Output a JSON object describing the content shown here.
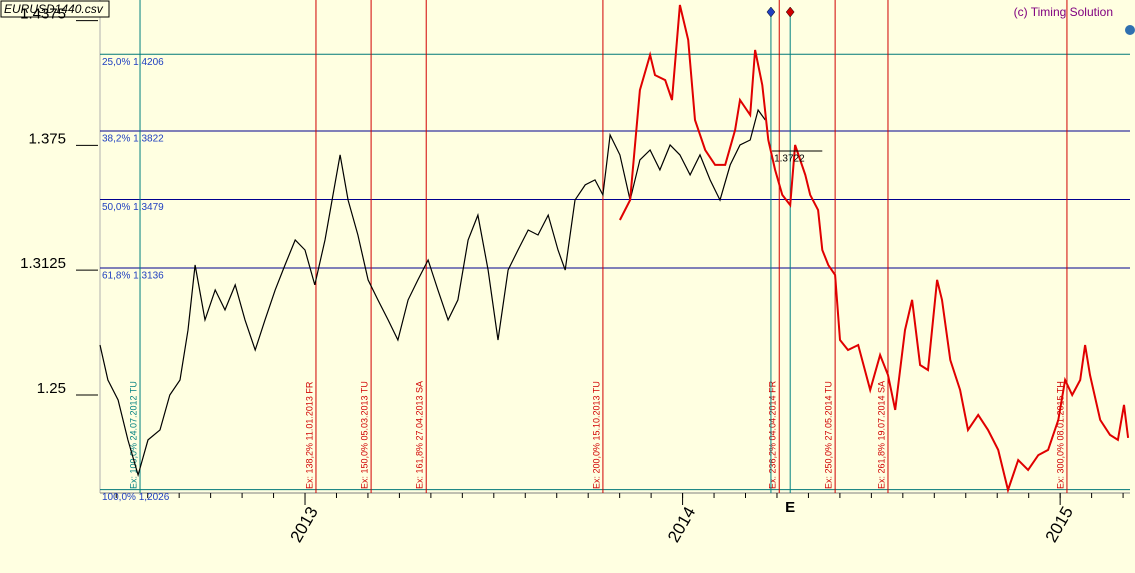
{
  "file_label": "EURUSD1440.csv",
  "copyright": "(c) Timing Solution",
  "chart_data": {
    "type": "line",
    "xlim": [
      2012.457,
      2015.185
    ],
    "ylim": [
      1.2009,
      1.4478
    ],
    "xticks": [
      2013,
      2014,
      2015
    ],
    "yticks": [
      1.25,
      1.3125,
      1.375,
      1.4375
    ],
    "series": [
      {
        "color": "#000000",
        "x": [
          2012.457,
          2012.478,
          2012.505,
          2012.531,
          2012.558,
          2012.584,
          2012.616,
          2012.642,
          2012.669,
          2012.69,
          2012.709,
          2012.735,
          2012.762,
          2012.788,
          2012.815,
          2012.841,
          2012.868,
          2012.894,
          2012.921,
          2012.947,
          2012.974,
          2013.0,
          2013.026,
          2013.053,
          2013.074,
          2013.093,
          2013.114,
          2013.14,
          2013.167,
          2013.193,
          2013.22,
          2013.246,
          2013.273,
          2013.299,
          2013.326,
          2013.352,
          2013.379,
          2013.405,
          2013.432,
          2013.458,
          2013.485,
          2013.511,
          2013.538,
          2013.564,
          2013.591,
          2013.617,
          2013.644,
          2013.67,
          2013.689,
          2013.715,
          2013.742,
          2013.768,
          2013.789,
          2013.808,
          2013.834,
          2013.861,
          2013.887,
          2013.914,
          2013.94,
          2013.967,
          2013.993,
          2014.02,
          2014.046,
          2014.073,
          2014.099,
          2014.126,
          2014.152,
          2014.179,
          2014.2,
          2014.219
        ],
        "values": [
          1.275,
          1.2575,
          1.2475,
          1.2275,
          1.2099,
          1.2275,
          1.2325,
          1.25,
          1.2575,
          1.2825,
          1.3151,
          1.2876,
          1.3026,
          1.2926,
          1.3051,
          1.2876,
          1.2725,
          1.2876,
          1.3026,
          1.3151,
          1.3276,
          1.3226,
          1.3051,
          1.3276,
          1.3502,
          1.3702,
          1.3476,
          1.3301,
          1.3076,
          1.2976,
          1.2876,
          1.2775,
          1.2976,
          1.3076,
          1.3176,
          1.3026,
          1.2876,
          1.2976,
          1.3276,
          1.3401,
          1.3126,
          1.2775,
          1.3126,
          1.3226,
          1.3326,
          1.3301,
          1.3401,
          1.3226,
          1.3126,
          1.3476,
          1.3552,
          1.3577,
          1.3502,
          1.3802,
          1.3702,
          1.3476,
          1.3677,
          1.3727,
          1.3627,
          1.3752,
          1.3702,
          1.3602,
          1.3702,
          1.3577,
          1.3476,
          1.3652,
          1.3752,
          1.3777,
          1.3927,
          1.3877
        ]
      },
      {
        "color": "#e00000",
        "x": [
          2013.834,
          2013.861,
          2013.887,
          2013.914,
          2013.927,
          2013.954,
          2013.972,
          2013.993,
          2014.015,
          2014.033,
          2014.06,
          2014.086,
          2014.113,
          2014.139,
          2014.152,
          2014.179,
          2014.192,
          2014.211,
          2014.227,
          2014.245,
          2014.264,
          2014.285,
          2014.298,
          2014.325,
          2014.338,
          2014.359,
          2014.37,
          2014.386,
          2014.404,
          2014.417,
          2014.438,
          2014.465,
          2014.497,
          2014.523,
          2014.544,
          2014.563,
          2014.589,
          2014.608,
          2014.629,
          2014.65,
          2014.674,
          2014.687,
          2014.709,
          2014.735,
          2014.756,
          2014.783,
          2014.809,
          2014.836,
          2014.862,
          2014.889,
          2014.915,
          2014.942,
          2014.968,
          2014.995,
          2015.013,
          2015.032,
          2015.053,
          2015.066,
          2015.079,
          2015.106,
          2015.132,
          2015.153,
          2015.169,
          2015.18
        ],
        "values": [
          1.3376,
          1.3476,
          1.4027,
          1.4203,
          1.4102,
          1.4077,
          1.3977,
          1.4453,
          1.4278,
          1.3877,
          1.3727,
          1.3652,
          1.3652,
          1.3827,
          1.3977,
          1.3902,
          1.4228,
          1.4052,
          1.3777,
          1.3627,
          1.3502,
          1.3451,
          1.3752,
          1.3602,
          1.3502,
          1.3426,
          1.3226,
          1.3151,
          1.3101,
          1.2775,
          1.2725,
          1.275,
          1.2525,
          1.27,
          1.26,
          1.2425,
          1.2825,
          1.2976,
          1.265,
          1.2625,
          1.3076,
          1.2976,
          1.2675,
          1.2525,
          1.2325,
          1.24,
          1.2325,
          1.2225,
          1.2024,
          1.2174,
          1.2124,
          1.2199,
          1.2225,
          1.2375,
          1.2575,
          1.25,
          1.2575,
          1.275,
          1.26,
          1.2375,
          1.23,
          1.2275,
          1.245,
          1.2285
        ]
      }
    ],
    "levels": [
      {
        "value": 1.4206,
        "label": "25,0% 1,4206",
        "color": "#007878"
      },
      {
        "value": 1.3822,
        "label": "38,2% 1,3822",
        "color": "#000090"
      },
      {
        "value": 1.3479,
        "label": "50,0% 1,3479",
        "color": "#000090"
      },
      {
        "value": 1.3136,
        "label": "61,8% 1,3136",
        "color": "#000090"
      },
      {
        "value": 1.2026,
        "label": "100,0% 1,2026",
        "color": "#007878"
      }
    ],
    "events": [
      {
        "x": 2012.563,
        "label": "Ex: 100,0% 24.07.2012 TU",
        "color": "#008080"
      },
      {
        "x": 2013.029,
        "label": "Ex: 138,2% 11.01.2013 FR",
        "color": "#d00000"
      },
      {
        "x": 2013.175,
        "label": "Ex: 150,0% 05.03.2013 TU",
        "color": "#d00000"
      },
      {
        "x": 2013.321,
        "label": "Ex: 161,8% 27.04.2013 SA",
        "color": "#d00000"
      },
      {
        "x": 2013.789,
        "label": "Ex: 200,0% 15.10.2013 TU",
        "color": "#d00000"
      },
      {
        "x": 2014.256,
        "label": "Ex: 236,2% 04.04.2014 FR",
        "color": "#d00000"
      },
      {
        "x": 2014.404,
        "label": "Ex: 250,0% 27.05.2014 TU",
        "color": "#d00000"
      },
      {
        "x": 2014.544,
        "label": "Ex: 261,8% 19.07.2014 SA",
        "color": "#d00000"
      },
      {
        "x": 2015.018,
        "label": "Ex: 300,0% 08.01.2015 TH",
        "color": "#d00000"
      }
    ],
    "markers": [
      {
        "x": 2014.234,
        "color": "#008080"
      },
      {
        "x": 2014.285,
        "label": "E",
        "color": "#008080"
      }
    ],
    "price_mark": {
      "value": 1.3722,
      "label": "1.3722",
      "x": [
        2014.237,
        2014.37
      ]
    }
  }
}
